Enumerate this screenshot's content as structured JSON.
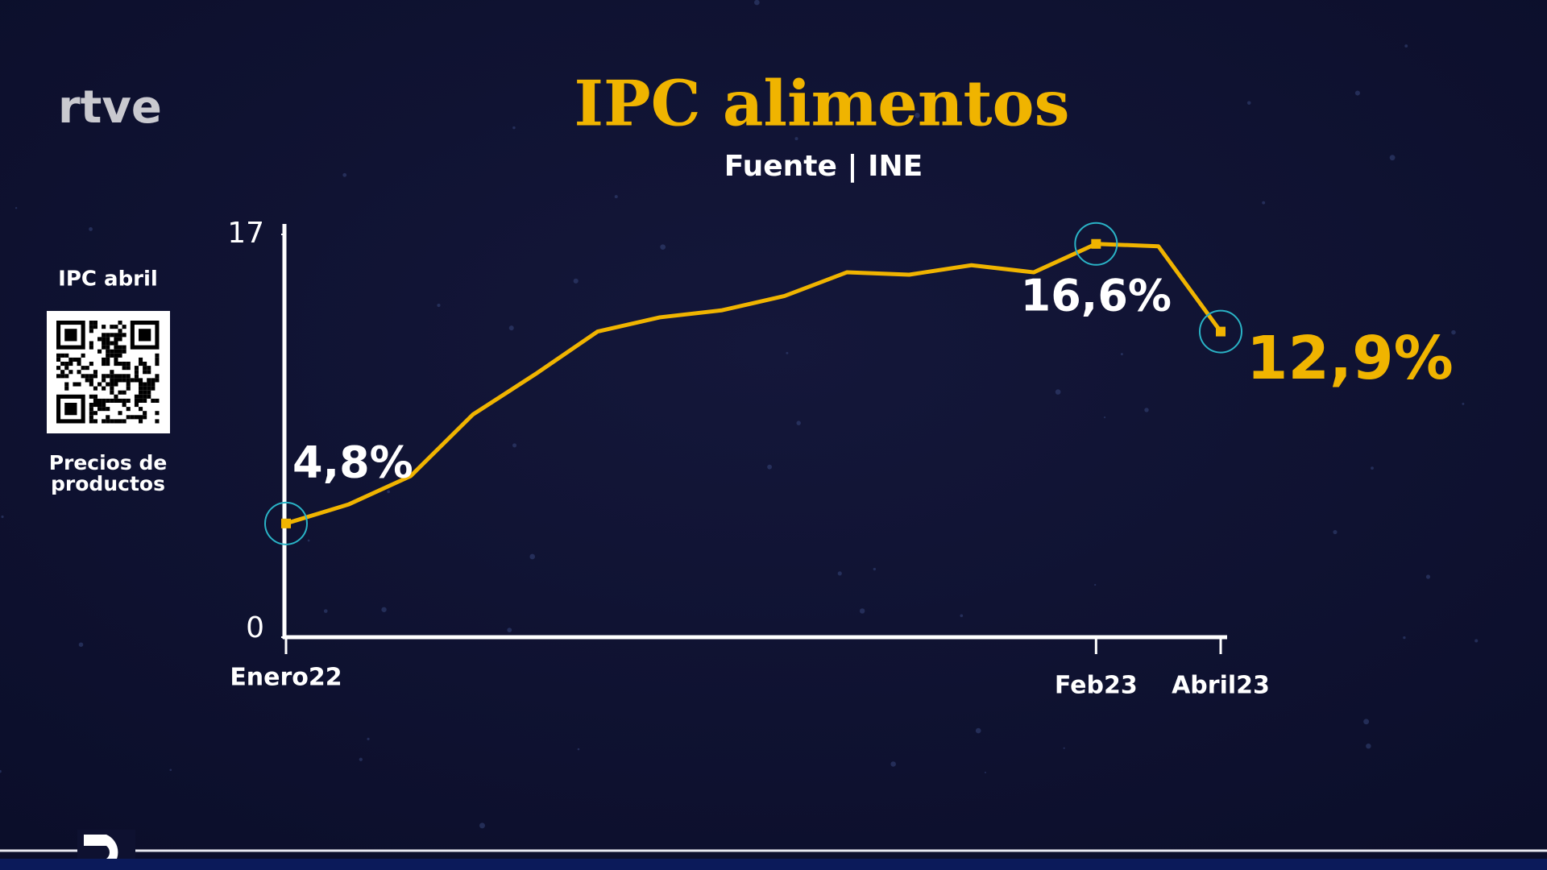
{
  "logo": "rtve",
  "sidebar": {
    "title": "IPC abril",
    "caption": [
      "Precios de",
      "productos"
    ]
  },
  "chart_data": {
    "type": "line",
    "title": "IPC alimentos",
    "subtitle": "Fuente | INE",
    "categories": [
      "Enero22",
      null,
      null,
      null,
      null,
      null,
      null,
      null,
      null,
      null,
      null,
      null,
      null,
      "Feb23",
      null,
      "Abril23"
    ],
    "values": [
      4.8,
      5.6,
      6.8,
      9.4,
      11.1,
      12.9,
      13.5,
      13.8,
      14.4,
      15.4,
      15.3,
      15.7,
      15.4,
      16.6,
      16.5,
      12.9
    ],
    "value_labels": [
      "4,8%",
      null,
      null,
      null,
      null,
      null,
      null,
      null,
      null,
      null,
      null,
      null,
      null,
      "16,6%",
      null,
      "12,9%"
    ],
    "color": "#f0b400",
    "highlight_color": "#2ab3c6",
    "ylim": [
      0,
      17
    ],
    "yticks": [
      0,
      17
    ],
    "grid": false
  }
}
